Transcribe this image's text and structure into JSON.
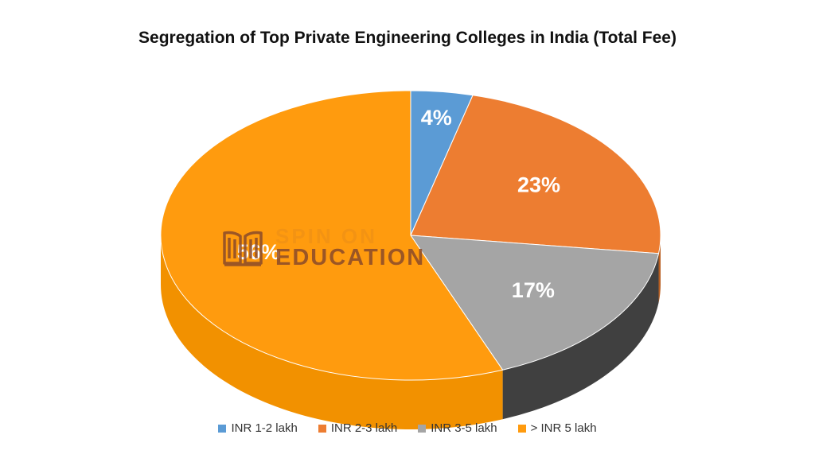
{
  "chart_data": {
    "type": "pie",
    "title": "Segregation of Top Private Engineering Colleges in India (Total Fee)",
    "categories": [
      "INR 1-2 lakh",
      "INR 2-3 lakh",
      "INR 3-5 lakh",
      "> INR 5 lakh"
    ],
    "values": [
      4,
      23,
      17,
      56
    ],
    "data_labels": [
      "4%",
      "23%",
      "17%",
      "56%"
    ],
    "colors": [
      "#5B9BD5",
      "#ED7D31",
      "#A5A5A5",
      "#FF9B0E"
    ],
    "legend": "bottom",
    "style": "3d"
  },
  "watermark": {
    "line1": "SPIN ON",
    "line2": "EDUCATION",
    "icon": "open-book-icon"
  }
}
